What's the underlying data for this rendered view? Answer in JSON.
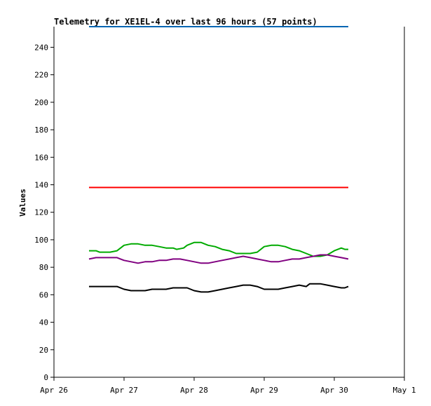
{
  "chart_data": {
    "type": "line",
    "title": "Telemetry for XE1EL-4 over last 96 hours (57 points)",
    "xlabel": "",
    "ylabel": "Values",
    "x_tick_labels": [
      "Apr 26",
      "Apr 27",
      "Apr 28",
      "Apr 29",
      "Apr 30",
      "May 1"
    ],
    "xlim_days": [
      26,
      31
    ],
    "y_ticks": [
      0,
      20,
      40,
      60,
      80,
      100,
      120,
      140,
      160,
      180,
      200,
      220,
      240
    ],
    "ylim": [
      0,
      255
    ],
    "grid": false,
    "legend": "none",
    "series": [
      {
        "color": "#0066b3",
        "points": [
          [
            26.5,
            255
          ],
          [
            30.2,
            255
          ]
        ]
      },
      {
        "color": "#ff0000",
        "points": [
          [
            26.5,
            138
          ],
          [
            30.2,
            138
          ]
        ]
      },
      {
        "color": "#00aa00",
        "points": [
          [
            26.5,
            92
          ],
          [
            26.6,
            92
          ],
          [
            26.65,
            91
          ],
          [
            26.8,
            91
          ],
          [
            26.9,
            92
          ],
          [
            26.95,
            94
          ],
          [
            27.0,
            96
          ],
          [
            27.1,
            97
          ],
          [
            27.2,
            97
          ],
          [
            27.3,
            96
          ],
          [
            27.4,
            96
          ],
          [
            27.5,
            95
          ],
          [
            27.6,
            94
          ],
          [
            27.7,
            94
          ],
          [
            27.75,
            93
          ],
          [
            27.85,
            94
          ],
          [
            27.9,
            96
          ],
          [
            28.0,
            98
          ],
          [
            28.1,
            98
          ],
          [
            28.2,
            96
          ],
          [
            28.3,
            95
          ],
          [
            28.4,
            93
          ],
          [
            28.5,
            92
          ],
          [
            28.6,
            90
          ],
          [
            28.7,
            90
          ],
          [
            28.8,
            90
          ],
          [
            28.9,
            91
          ],
          [
            29.0,
            95
          ],
          [
            29.1,
            96
          ],
          [
            29.2,
            96
          ],
          [
            29.3,
            95
          ],
          [
            29.4,
            93
          ],
          [
            29.5,
            92
          ],
          [
            29.6,
            90
          ],
          [
            29.7,
            88
          ],
          [
            29.8,
            88
          ],
          [
            29.9,
            89
          ],
          [
            30.0,
            92
          ],
          [
            30.1,
            94
          ],
          [
            30.15,
            93
          ],
          [
            30.2,
            93
          ]
        ]
      },
      {
        "color": "#800080",
        "points": [
          [
            26.5,
            86
          ],
          [
            26.6,
            87
          ],
          [
            26.75,
            87
          ],
          [
            26.9,
            87
          ],
          [
            26.95,
            86
          ],
          [
            27.0,
            85
          ],
          [
            27.1,
            84
          ],
          [
            27.2,
            83
          ],
          [
            27.3,
            84
          ],
          [
            27.4,
            84
          ],
          [
            27.5,
            85
          ],
          [
            27.6,
            85
          ],
          [
            27.7,
            86
          ],
          [
            27.8,
            86
          ],
          [
            27.9,
            85
          ],
          [
            28.0,
            84
          ],
          [
            28.1,
            83
          ],
          [
            28.2,
            83
          ],
          [
            28.3,
            84
          ],
          [
            28.4,
            85
          ],
          [
            28.5,
            86
          ],
          [
            28.6,
            87
          ],
          [
            28.7,
            88
          ],
          [
            28.8,
            87
          ],
          [
            28.9,
            86
          ],
          [
            29.0,
            85
          ],
          [
            29.1,
            84
          ],
          [
            29.2,
            84
          ],
          [
            29.3,
            85
          ],
          [
            29.4,
            86
          ],
          [
            29.5,
            86
          ],
          [
            29.6,
            87
          ],
          [
            29.7,
            88
          ],
          [
            29.8,
            89
          ],
          [
            29.9,
            89
          ],
          [
            30.0,
            88
          ],
          [
            30.1,
            87
          ],
          [
            30.2,
            86
          ]
        ]
      },
      {
        "color": "#000000",
        "points": [
          [
            26.5,
            66
          ],
          [
            26.9,
            66
          ],
          [
            27.0,
            64
          ],
          [
            27.1,
            63
          ],
          [
            27.3,
            63
          ],
          [
            27.4,
            64
          ],
          [
            27.6,
            64
          ],
          [
            27.7,
            65
          ],
          [
            27.9,
            65
          ],
          [
            28.0,
            63
          ],
          [
            28.1,
            62
          ],
          [
            28.2,
            62
          ],
          [
            28.3,
            63
          ],
          [
            28.4,
            64
          ],
          [
            28.5,
            65
          ],
          [
            28.6,
            66
          ],
          [
            28.7,
            67
          ],
          [
            28.8,
            67
          ],
          [
            28.9,
            66
          ],
          [
            29.0,
            64
          ],
          [
            29.2,
            64
          ],
          [
            29.3,
            65
          ],
          [
            29.4,
            66
          ],
          [
            29.5,
            67
          ],
          [
            29.6,
            66
          ],
          [
            29.65,
            68
          ],
          [
            29.8,
            68
          ],
          [
            29.9,
            67
          ],
          [
            30.0,
            66
          ],
          [
            30.1,
            65
          ],
          [
            30.15,
            65
          ],
          [
            30.2,
            66
          ]
        ]
      }
    ]
  }
}
